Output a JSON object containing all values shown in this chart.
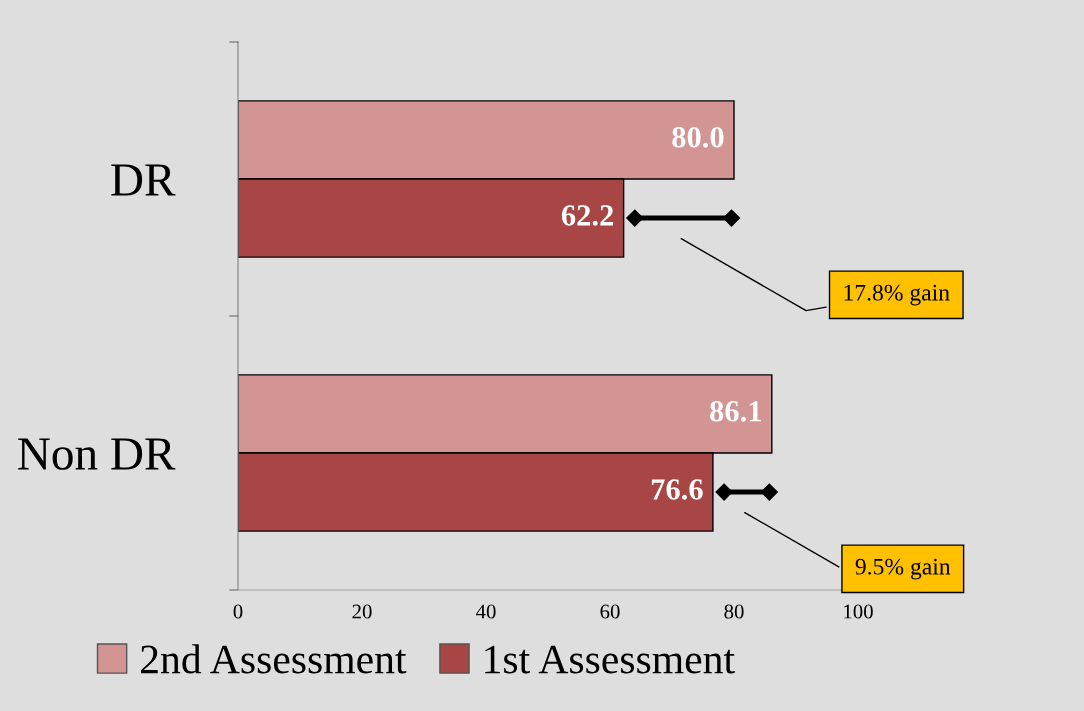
{
  "chart_data": {
    "type": "bar",
    "orientation": "horizontal",
    "categories": [
      "DR",
      "Non DR"
    ],
    "series": [
      {
        "name": "2nd Assessment",
        "color": "#d39494",
        "values": [
          80.0,
          86.1
        ],
        "value_labels": [
          "80.0",
          "86.1"
        ]
      },
      {
        "name": "1st Assessment",
        "color": "#a84646",
        "values": [
          62.2,
          76.6
        ],
        "value_labels": [
          "62.2",
          "76.6"
        ]
      }
    ],
    "xlim": [
      0,
      100
    ],
    "xticks": [
      0,
      20,
      40,
      60,
      80,
      100
    ],
    "grid": false,
    "legend": "bottom",
    "annotations": [
      "17.8% gain",
      "9.5% gain"
    ]
  }
}
